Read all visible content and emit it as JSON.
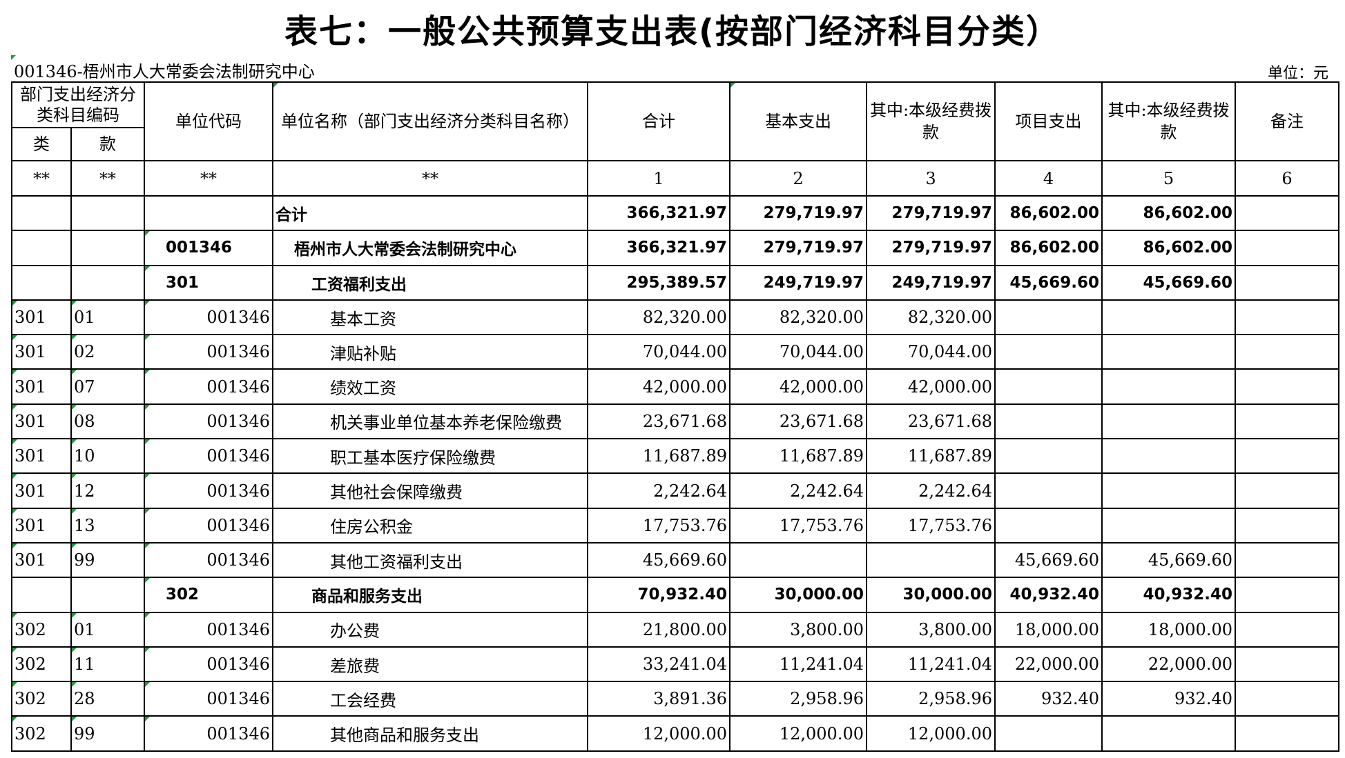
{
  "title": "表七：一般公共预算支出表(按部门经济科目分类）",
  "org_label": "001346-梧州市人大常委会法制研究中心",
  "unit_label": "单位：元",
  "header": {
    "econ_code": "部门支出经济分类科目编码",
    "lei": "类",
    "kuan": "款",
    "unit_code": "单位代码",
    "unit_name": "单位名称（部门支出经济分类科目名称）",
    "total": "合计",
    "basic": "基本支出",
    "basic_own": "其中:本级经费拨款",
    "project": "项目支出",
    "project_own": "其中:本级经费拨款",
    "remark": "备注"
  },
  "index_row": [
    "**",
    "**",
    "**",
    "**",
    "1",
    "2",
    "3",
    "4",
    "5",
    "6"
  ],
  "summary_rows": [
    {
      "lei": "",
      "kuan": "",
      "code": "",
      "name": "合计",
      "total": "366,321.97",
      "basic": "279,719.97",
      "basic_own": "279,719.97",
      "project": "86,602.00",
      "project_own": "86,602.00",
      "remark": ""
    },
    {
      "lei": "",
      "kuan": "",
      "code": "001346",
      "name": "梧州市人大常委会法制研究中心",
      "total": "366,321.97",
      "basic": "279,719.97",
      "basic_own": "279,719.97",
      "project": "86,602.00",
      "project_own": "86,602.00",
      "remark": ""
    }
  ],
  "groups": [
    {
      "code": "301",
      "name": "工资福利支出",
      "total": "295,389.57",
      "basic": "249,719.97",
      "basic_own": "249,719.97",
      "project": "45,669.60",
      "project_own": "45,669.60",
      "items": [
        {
          "lei": "301",
          "kuan": "01",
          "code": "001346",
          "name": "基本工资",
          "total": "82,320.00",
          "basic": "82,320.00",
          "basic_own": "82,320.00",
          "project": "",
          "project_own": ""
        },
        {
          "lei": "301",
          "kuan": "02",
          "code": "001346",
          "name": "津贴补贴",
          "total": "70,044.00",
          "basic": "70,044.00",
          "basic_own": "70,044.00",
          "project": "",
          "project_own": ""
        },
        {
          "lei": "301",
          "kuan": "07",
          "code": "001346",
          "name": "绩效工资",
          "total": "42,000.00",
          "basic": "42,000.00",
          "basic_own": "42,000.00",
          "project": "",
          "project_own": ""
        },
        {
          "lei": "301",
          "kuan": "08",
          "code": "001346",
          "name": "机关事业单位基本养老保险缴费",
          "total": "23,671.68",
          "basic": "23,671.68",
          "basic_own": "23,671.68",
          "project": "",
          "project_own": ""
        },
        {
          "lei": "301",
          "kuan": "10",
          "code": "001346",
          "name": "职工基本医疗保险缴费",
          "total": "11,687.89",
          "basic": "11,687.89",
          "basic_own": "11,687.89",
          "project": "",
          "project_own": ""
        },
        {
          "lei": "301",
          "kuan": "12",
          "code": "001346",
          "name": "其他社会保障缴费",
          "total": "2,242.64",
          "basic": "2,242.64",
          "basic_own": "2,242.64",
          "project": "",
          "project_own": ""
        },
        {
          "lei": "301",
          "kuan": "13",
          "code": "001346",
          "name": "住房公积金",
          "total": "17,753.76",
          "basic": "17,753.76",
          "basic_own": "17,753.76",
          "project": "",
          "project_own": ""
        },
        {
          "lei": "301",
          "kuan": "99",
          "code": "001346",
          "name": "其他工资福利支出",
          "total": "45,669.60",
          "basic": "",
          "basic_own": "",
          "project": "45,669.60",
          "project_own": "45,669.60"
        }
      ]
    },
    {
      "code": "302",
      "name": "商品和服务支出",
      "total": "70,932.40",
      "basic": "30,000.00",
      "basic_own": "30,000.00",
      "project": "40,932.40",
      "project_own": "40,932.40",
      "items": [
        {
          "lei": "302",
          "kuan": "01",
          "code": "001346",
          "name": "办公费",
          "total": "21,800.00",
          "basic": "3,800.00",
          "basic_own": "3,800.00",
          "project": "18,000.00",
          "project_own": "18,000.00"
        },
        {
          "lei": "302",
          "kuan": "11",
          "code": "001346",
          "name": "差旅费",
          "total": "33,241.04",
          "basic": "11,241.04",
          "basic_own": "11,241.04",
          "project": "22,000.00",
          "project_own": "22,000.00"
        },
        {
          "lei": "302",
          "kuan": "28",
          "code": "001346",
          "name": "工会经费",
          "total": "3,891.36",
          "basic": "2,958.96",
          "basic_own": "2,958.96",
          "project": "932.40",
          "project_own": "932.40"
        },
        {
          "lei": "302",
          "kuan": "99",
          "code": "001346",
          "name": "其他商品和服务支出",
          "total": "12,000.00",
          "basic": "12,000.00",
          "basic_own": "12,000.00",
          "project": "",
          "project_own": ""
        }
      ]
    }
  ]
}
